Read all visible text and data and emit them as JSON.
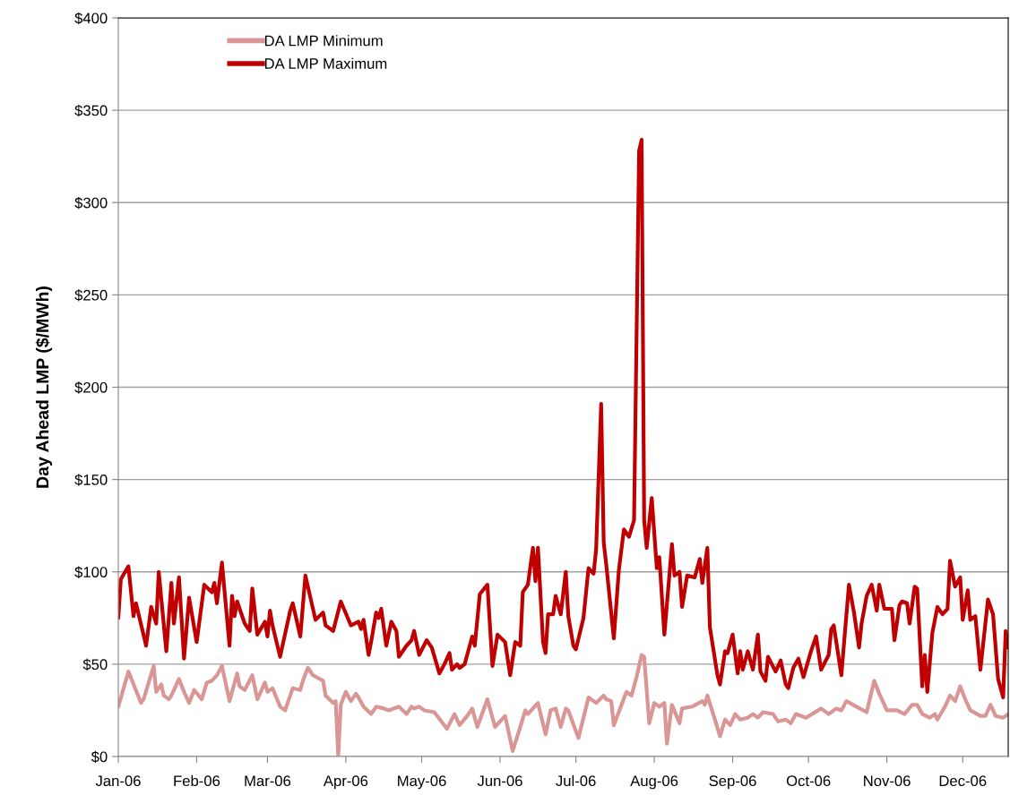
{
  "chart_data": {
    "type": "line",
    "ylabel": "Day Ahead LMP ($/MWh)",
    "xlim": [
      "2006-01-01",
      "2006-12-19"
    ],
    "xticks": [
      {
        "value": "2006-01-01",
        "label": "Jan-06"
      },
      {
        "value": "2006-02-01",
        "label": "Feb-06"
      },
      {
        "value": "2006-03-01",
        "label": "Mar-06"
      },
      {
        "value": "2006-04-01",
        "label": "Apr-06"
      },
      {
        "value": "2006-05-01",
        "label": "May-06"
      },
      {
        "value": "2006-06-01",
        "label": "Jun-06"
      },
      {
        "value": "2006-07-01",
        "label": "Jul-06"
      },
      {
        "value": "2006-08-01",
        "label": "Aug-06"
      },
      {
        "value": "2006-09-01",
        "label": "Sep-06"
      },
      {
        "value": "2006-10-01",
        "label": "Oct-06"
      },
      {
        "value": "2006-11-01",
        "label": "Nov-06"
      },
      {
        "value": "2006-12-01",
        "label": "Dec-06"
      }
    ],
    "ylim": [
      0,
      400
    ],
    "yticks": [
      {
        "value": 0,
        "label": "$0"
      },
      {
        "value": 50,
        "label": "$50"
      },
      {
        "value": 100,
        "label": "$100"
      },
      {
        "value": 150,
        "label": "$150"
      },
      {
        "value": 200,
        "label": "$200"
      },
      {
        "value": 250,
        "label": "$250"
      },
      {
        "value": 300,
        "label": "$300"
      },
      {
        "value": 350,
        "label": "$350"
      },
      {
        "value": 400,
        "label": "$400"
      }
    ],
    "grid": "y",
    "legend": "top left",
    "marker": "none",
    "line_style": "solid",
    "series": [
      {
        "name": "DA LMP Minimum",
        "color": "#d99694",
        "x": [
          "2006-01-01",
          "2006-01-05",
          "2006-01-10",
          "2006-01-11",
          "2006-01-15",
          "2006-01-16",
          "2006-01-18",
          "2006-01-19",
          "2006-01-21",
          "2006-01-22",
          "2006-01-25",
          "2006-01-27",
          "2006-01-29",
          "2006-01-31",
          "2006-02-03",
          "2006-02-05",
          "2006-02-07",
          "2006-02-09",
          "2006-02-11",
          "2006-02-14",
          "2006-02-17",
          "2006-02-18",
          "2006-02-20",
          "2006-02-23",
          "2006-02-25",
          "2006-02-28",
          "2006-03-01",
          "2006-03-03",
          "2006-03-06",
          "2006-03-08",
          "2006-03-11",
          "2006-03-14",
          "2006-03-15",
          "2006-03-17",
          "2006-03-19",
          "2006-03-23",
          "2006-03-24",
          "2006-03-27",
          "2006-03-28",
          "2006-03-29",
          "2006-03-30",
          "2006-04-01",
          "2006-04-03",
          "2006-04-05",
          "2006-04-06",
          "2006-04-08",
          "2006-04-11",
          "2006-04-13",
          "2006-04-16",
          "2006-04-18",
          "2006-04-22",
          "2006-04-25",
          "2006-04-27",
          "2006-04-28",
          "2006-04-30",
          "2006-05-02",
          "2006-05-06",
          "2006-05-11",
          "2006-05-14",
          "2006-05-16",
          "2006-05-19",
          "2006-05-21",
          "2006-05-23",
          "2006-05-27",
          "2006-05-30",
          "2006-06-03",
          "2006-06-06",
          "2006-06-09",
          "2006-06-11",
          "2006-06-12",
          "2006-06-16",
          "2006-06-19",
          "2006-06-21",
          "2006-06-23",
          "2006-06-25",
          "2006-06-27",
          "2006-06-28",
          "2006-07-02",
          "2006-07-06",
          "2006-07-09",
          "2006-07-12",
          "2006-07-13",
          "2006-07-15",
          "2006-07-16",
          "2006-07-21",
          "2006-07-23",
          "2006-07-25",
          "2006-07-27",
          "2006-07-28",
          "2006-07-30",
          "2006-08-01",
          "2006-08-03",
          "2006-08-05",
          "2006-08-06",
          "2006-08-08",
          "2006-08-11",
          "2006-08-12",
          "2006-08-16",
          "2006-08-20",
          "2006-08-21",
          "2006-08-22",
          "2006-08-25",
          "2006-08-27",
          "2006-08-29",
          "2006-08-31",
          "2006-09-02",
          "2006-09-04",
          "2006-09-07",
          "2006-09-09",
          "2006-09-11",
          "2006-09-13",
          "2006-09-17",
          "2006-09-19",
          "2006-09-22",
          "2006-09-24",
          "2006-09-26",
          "2006-09-30",
          "2006-10-06",
          "2006-10-09",
          "2006-10-12",
          "2006-10-14",
          "2006-10-16",
          "2006-10-20",
          "2006-10-24",
          "2006-10-27",
          "2006-10-29",
          "2006-11-01",
          "2006-11-05",
          "2006-11-08",
          "2006-11-11",
          "2006-11-13",
          "2006-11-15",
          "2006-11-18",
          "2006-11-20",
          "2006-11-21",
          "2006-11-24",
          "2006-11-26",
          "2006-11-28",
          "2006-11-30",
          "2006-12-02",
          "2006-12-04",
          "2006-12-08",
          "2006-12-10",
          "2006-12-12",
          "2006-12-14",
          "2006-12-17",
          "2006-12-19"
        ],
        "values": [
          27,
          46,
          29,
          31,
          49,
          35,
          39,
          33,
          31,
          33,
          42,
          35,
          29,
          36,
          31,
          40,
          41,
          44,
          49,
          30,
          45,
          38,
          36,
          44,
          31,
          40,
          35,
          37,
          27,
          25,
          37,
          36,
          41,
          48,
          44,
          41,
          33,
          29,
          30,
          0,
          28,
          35,
          30,
          34,
          32,
          27,
          23,
          27,
          26,
          25,
          27,
          23,
          27,
          26,
          27,
          25,
          24,
          15,
          23,
          17,
          22,
          26,
          16,
          31,
          16,
          22,
          3,
          16,
          25,
          23,
          29,
          12,
          25,
          26,
          16,
          26,
          25,
          10,
          32,
          29,
          33,
          31,
          30,
          17,
          35,
          33,
          43,
          55,
          54,
          18,
          29,
          27,
          29,
          7,
          28,
          18,
          26,
          27,
          30,
          28,
          33,
          20,
          11,
          20,
          17,
          23,
          20,
          21,
          23,
          21,
          24,
          23,
          19,
          20,
          18,
          23,
          21,
          26,
          23,
          26,
          25,
          30,
          27,
          24,
          41,
          34,
          25,
          25,
          23,
          28,
          28,
          23,
          21,
          23,
          20,
          27,
          33,
          30,
          38,
          31,
          25,
          22,
          22,
          28,
          22,
          21,
          23
        ]
      },
      {
        "name": "DA LMP Maximum",
        "color": "#c00000",
        "x": [
          "2006-01-01",
          "2006-01-02",
          "2006-01-05",
          "2006-01-07",
          "2006-01-08",
          "2006-01-12",
          "2006-01-14",
          "2006-01-16",
          "2006-01-17",
          "2006-01-20",
          "2006-01-22",
          "2006-01-23",
          "2006-01-25",
          "2006-01-27",
          "2006-01-29",
          "2006-02-01",
          "2006-02-04",
          "2006-02-07",
          "2006-02-08",
          "2006-02-09",
          "2006-02-11",
          "2006-02-14",
          "2006-02-15",
          "2006-02-16",
          "2006-02-17",
          "2006-02-20",
          "2006-02-22",
          "2006-02-23",
          "2006-02-25",
          "2006-02-28",
          "2006-03-01",
          "2006-03-02",
          "2006-03-03",
          "2006-03-06",
          "2006-03-10",
          "2006-03-11",
          "2006-03-14",
          "2006-03-16",
          "2006-03-18",
          "2006-03-20",
          "2006-03-23",
          "2006-03-24",
          "2006-03-27",
          "2006-03-30",
          "2006-04-03",
          "2006-04-06",
          "2006-04-07",
          "2006-04-08",
          "2006-04-10",
          "2006-04-11",
          "2006-04-13",
          "2006-04-14",
          "2006-04-15",
          "2006-04-17",
          "2006-04-19",
          "2006-04-21",
          "2006-04-22",
          "2006-04-25",
          "2006-04-27",
          "2006-04-28",
          "2006-04-30",
          "2006-05-03",
          "2006-05-05",
          "2006-05-08",
          "2006-05-10",
          "2006-05-12",
          "2006-05-13",
          "2006-05-15",
          "2006-05-16",
          "2006-05-18",
          "2006-05-21",
          "2006-05-22",
          "2006-05-24",
          "2006-05-27",
          "2006-05-29",
          "2006-05-31",
          "2006-06-03",
          "2006-06-05",
          "2006-06-07",
          "2006-06-09",
          "2006-06-10",
          "2006-06-12",
          "2006-06-14",
          "2006-06-15",
          "2006-06-16",
          "2006-06-18",
          "2006-06-19",
          "2006-06-20",
          "2006-06-22",
          "2006-06-23",
          "2006-06-25",
          "2006-06-27",
          "2006-06-28",
          "2006-06-30",
          "2006-07-01",
          "2006-07-04",
          "2006-07-06",
          "2006-07-08",
          "2006-07-09",
          "2006-07-11",
          "2006-07-12",
          "2006-07-13",
          "2006-07-16",
          "2006-07-18",
          "2006-07-20",
          "2006-07-22",
          "2006-07-24",
          "2006-07-26",
          "2006-07-27",
          "2006-07-28",
          "2006-07-29",
          "2006-07-31",
          "2006-08-02",
          "2006-08-03",
          "2006-08-05",
          "2006-08-08",
          "2006-08-09",
          "2006-08-11",
          "2006-08-12",
          "2006-08-14",
          "2006-08-17",
          "2006-08-19",
          "2006-08-20",
          "2006-08-22",
          "2006-08-23",
          "2006-08-26",
          "2006-08-27",
          "2006-08-29",
          "2006-08-30",
          "2006-09-01",
          "2006-09-03",
          "2006-09-04",
          "2006-09-05",
          "2006-09-07",
          "2006-09-09",
          "2006-09-11",
          "2006-09-12",
          "2006-09-14",
          "2006-09-15",
          "2006-09-18",
          "2006-09-20",
          "2006-09-22",
          "2006-09-23",
          "2006-09-25",
          "2006-09-27",
          "2006-09-29",
          "2006-10-02",
          "2006-10-04",
          "2006-10-06",
          "2006-10-09",
          "2006-10-10",
          "2006-10-11",
          "2006-10-14",
          "2006-10-17",
          "2006-10-19",
          "2006-10-21",
          "2006-10-22",
          "2006-10-24",
          "2006-10-26",
          "2006-10-28",
          "2006-10-29",
          "2006-10-31",
          "2006-11-03",
          "2006-11-04",
          "2006-11-06",
          "2006-11-07",
          "2006-11-09",
          "2006-11-10",
          "2006-11-12",
          "2006-11-13",
          "2006-11-15",
          "2006-11-16",
          "2006-11-17",
          "2006-11-19",
          "2006-11-21",
          "2006-11-23",
          "2006-11-25",
          "2006-11-26",
          "2006-11-28",
          "2006-11-30",
          "2006-12-01",
          "2006-12-03",
          "2006-12-04",
          "2006-12-06",
          "2006-12-08",
          "2006-12-11",
          "2006-12-13",
          "2006-12-15",
          "2006-12-17",
          "2006-12-18",
          "2006-12-19"
        ],
        "values": [
          75,
          96,
          103,
          76,
          83,
          60,
          81,
          72,
          100,
          57,
          94,
          72,
          97,
          53,
          86,
          62,
          93,
          89,
          94,
          83,
          105,
          60,
          87,
          76,
          84,
          72,
          68,
          91,
          66,
          73,
          65,
          79,
          71,
          54,
          79,
          83,
          65,
          98,
          86,
          74,
          78,
          71,
          68,
          84,
          71,
          73,
          69,
          74,
          55,
          62,
          78,
          75,
          80,
          60,
          73,
          68,
          54,
          60,
          63,
          68,
          55,
          63,
          59,
          45,
          50,
          56,
          47,
          50,
          48,
          50,
          65,
          60,
          88,
          93,
          49,
          66,
          62,
          44,
          62,
          60,
          89,
          93,
          113,
          95,
          113,
          62,
          56,
          77,
          77,
          87,
          77,
          100,
          76,
          60,
          58,
          75,
          102,
          99,
          112,
          191,
          116,
          104,
          64,
          101,
          123,
          119,
          128,
          328,
          334,
          128,
          113,
          140,
          102,
          108,
          66,
          115,
          98,
          100,
          81,
          98,
          97,
          107,
          94,
          113,
          70,
          44,
          39,
          57,
          56,
          66,
          45,
          57,
          47,
          57,
          47,
          66,
          46,
          41,
          54,
          46,
          52,
          39,
          37,
          48,
          53,
          43,
          57,
          65,
          47,
          55,
          69,
          71,
          44,
          93,
          78,
          59,
          72,
          87,
          93,
          79,
          93,
          80,
          80,
          63,
          82,
          84,
          83,
          72,
          92,
          91,
          38,
          55,
          35,
          67,
          81,
          77,
          80,
          106,
          92,
          97,
          74,
          90,
          74,
          76,
          47,
          85,
          77,
          42,
          32,
          68,
          59
        ]
      }
    ]
  }
}
